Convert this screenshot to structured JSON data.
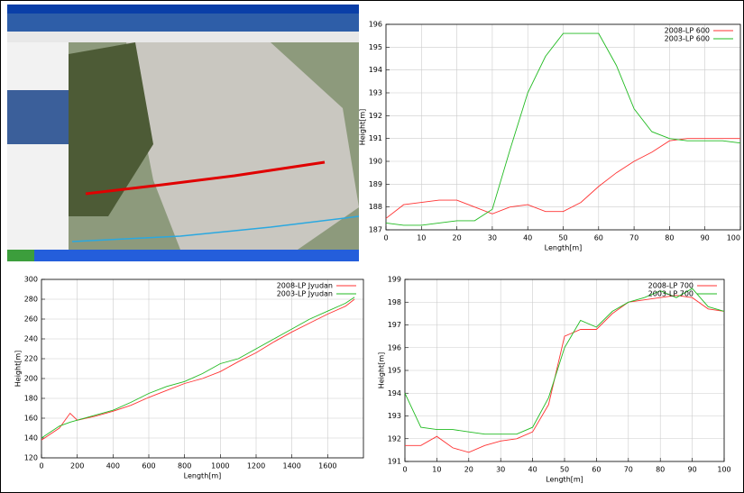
{
  "chart_data": [
    {
      "type": "line",
      "xlabel": "Length[m]",
      "ylabel": "Height[m]",
      "grid": true,
      "legend": "upper right",
      "xlim": [
        0,
        100
      ],
      "ylim": [
        187,
        196
      ],
      "xticks": [
        0,
        10,
        20,
        30,
        40,
        50,
        60,
        70,
        80,
        90,
        100
      ],
      "yticks": [
        187,
        188,
        189,
        190,
        191,
        192,
        193,
        194,
        195,
        196
      ],
      "x": [
        0,
        5,
        10,
        15,
        20,
        25,
        30,
        35,
        40,
        45,
        50,
        55,
        60,
        65,
        70,
        75,
        80,
        85,
        90,
        95,
        100
      ],
      "series": [
        {
          "name": "2008-LP 600",
          "color": "#ff3333",
          "values": [
            187.5,
            188.1,
            188.2,
            188.3,
            188.3,
            188.0,
            187.7,
            188.0,
            188.1,
            187.8,
            187.8,
            188.2,
            188.9,
            189.5,
            190.0,
            190.4,
            190.9,
            191.0,
            191.0,
            191.0,
            191.0
          ]
        },
        {
          "name": "2003-LP 600",
          "color": "#22bb22",
          "values": [
            187.3,
            187.2,
            187.2,
            187.3,
            187.4,
            187.4,
            187.9,
            190.5,
            193.0,
            194.6,
            195.6,
            195.6,
            195.6,
            194.2,
            192.3,
            191.3,
            191.0,
            190.9,
            190.9,
            190.9,
            190.8
          ]
        }
      ]
    },
    {
      "type": "line",
      "xlabel": "Length[m]",
      "ylabel": "Height[m]",
      "grid": true,
      "legend": "upper right",
      "xlim": [
        0,
        1800
      ],
      "ylim": [
        120,
        300
      ],
      "xticks": [
        0,
        200,
        400,
        600,
        800,
        1000,
        1200,
        1400,
        1600
      ],
      "yticks": [
        120,
        140,
        160,
        180,
        200,
        220,
        240,
        260,
        280,
        300
      ],
      "x": [
        0,
        100,
        160,
        200,
        300,
        400,
        500,
        600,
        700,
        800,
        900,
        1000,
        1100,
        1200,
        1300,
        1400,
        1500,
        1600,
        1700,
        1750
      ],
      "series": [
        {
          "name": "2008-LP Jyudan",
          "color": "#ff3333",
          "values": [
            138,
            150,
            165,
            158,
            162,
            167,
            173,
            181,
            188,
            195,
            200,
            207,
            217,
            226,
            237,
            247,
            256,
            265,
            273,
            280
          ]
        },
        {
          "name": "2003-LP Jyudan",
          "color": "#22bb22",
          "values": [
            140,
            152,
            156,
            158,
            163,
            168,
            176,
            185,
            192,
            197,
            205,
            215,
            220,
            230,
            240,
            250,
            260,
            268,
            276,
            282
          ]
        }
      ]
    },
    {
      "type": "line",
      "xlabel": "Length[m]",
      "ylabel": "Height[m]",
      "grid": true,
      "legend": "upper right",
      "xlim": [
        0,
        100
      ],
      "ylim": [
        191,
        199
      ],
      "xticks": [
        0,
        10,
        20,
        30,
        40,
        50,
        60,
        70,
        80,
        90,
        100
      ],
      "yticks": [
        191,
        192,
        193,
        194,
        195,
        196,
        197,
        198,
        199
      ],
      "x": [
        0,
        5,
        10,
        15,
        20,
        25,
        30,
        35,
        40,
        45,
        50,
        55,
        60,
        65,
        70,
        75,
        80,
        85,
        90,
        95,
        100
      ],
      "series": [
        {
          "name": "2008-LP 700",
          "color": "#ff3333",
          "values": [
            191.7,
            191.7,
            192.1,
            191.6,
            191.4,
            191.7,
            191.9,
            192.0,
            192.3,
            193.5,
            196.5,
            196.8,
            196.8,
            197.5,
            198.0,
            198.1,
            198.2,
            198.3,
            198.2,
            197.7,
            197.6
          ]
        },
        {
          "name": "2003-LP 700",
          "color": "#22bb22",
          "values": [
            194.0,
            192.5,
            192.4,
            192.4,
            192.3,
            192.2,
            192.2,
            192.2,
            192.5,
            193.8,
            196.0,
            197.2,
            196.9,
            197.6,
            198.0,
            198.2,
            198.5,
            198.2,
            198.6,
            197.8,
            197.6
          ]
        }
      ]
    }
  ]
}
